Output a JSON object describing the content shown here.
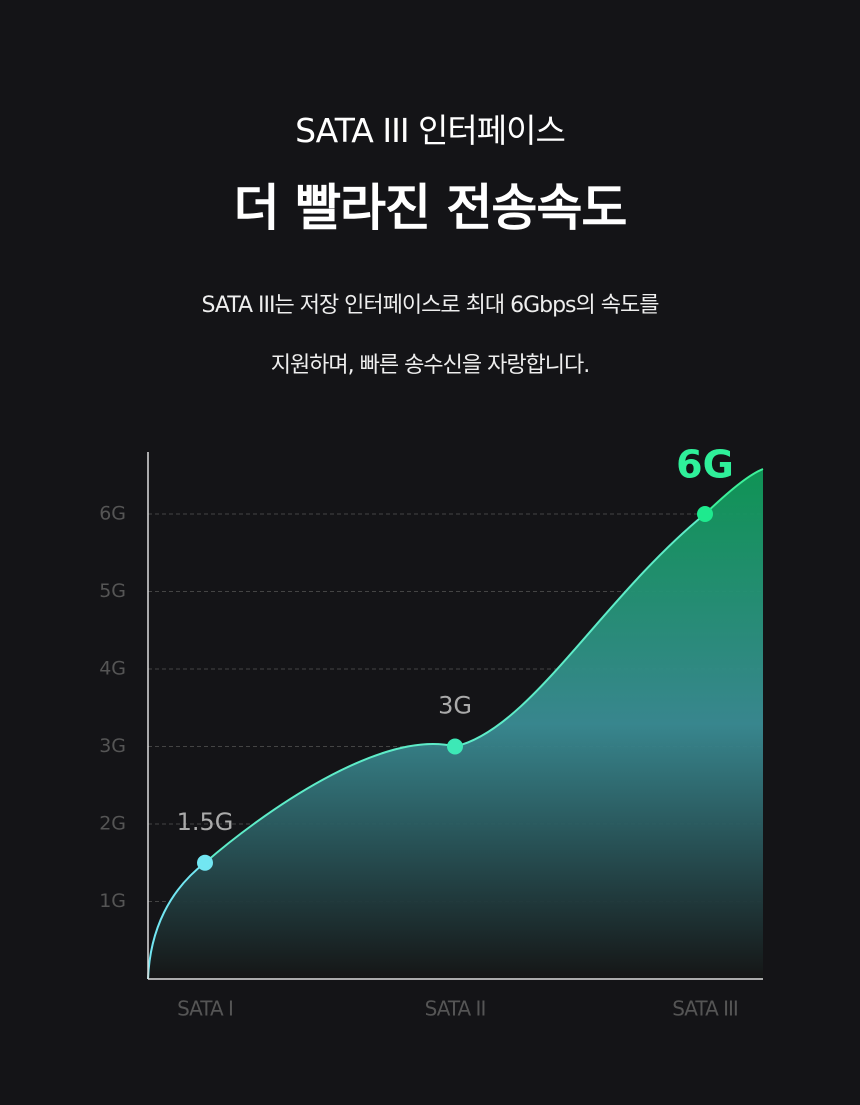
{
  "header": {
    "subtitle": "SATA III 인터페이스",
    "title": "더 빨라진 전송속도",
    "description": [
      "SATA III는 저장 인터페이스로 최대 6Gbps의 속도를",
      "지원하며, 빠른 송수신을 자랑합니다."
    ]
  },
  "chart_data": {
    "type": "area",
    "categories": [
      "SATA I",
      "SATA II",
      "SATA III"
    ],
    "values": [
      1.5,
      3,
      6
    ],
    "value_labels": [
      "1.5G",
      "3G",
      "6G"
    ],
    "point_colors": [
      "#72e6f2",
      "#3de8b6",
      "#1eea8e"
    ],
    "ylim": [
      0,
      6.8
    ],
    "yticks": [
      {
        "value": 1,
        "label": "1G"
      },
      {
        "value": 2,
        "label": "2G"
      },
      {
        "value": 3,
        "label": "3G"
      },
      {
        "value": 4,
        "label": "4G"
      },
      {
        "value": 5,
        "label": "5G"
      },
      {
        "value": 6,
        "label": "6G"
      }
    ],
    "grid": true
  }
}
